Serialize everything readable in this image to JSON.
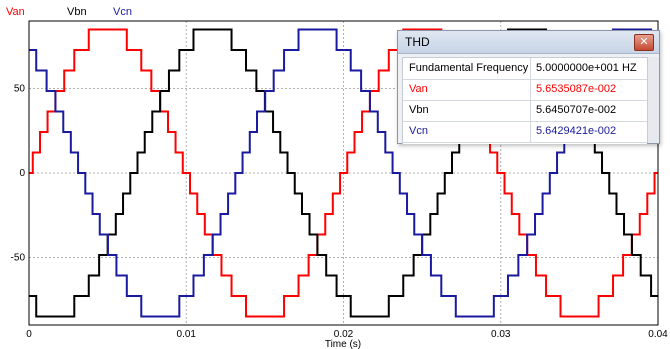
{
  "chart_data": {
    "type": "line",
    "title": "",
    "xlabel": "Time (s)",
    "ylabel": "",
    "xlim": [
      0,
      0.04
    ],
    "ylim": [
      -90,
      90
    ],
    "x_ticks": [
      0,
      0.01,
      0.02,
      0.03,
      0.04
    ],
    "x_tick_labels": [
      "0",
      "0.01",
      "0.02",
      "0.03",
      "0.04"
    ],
    "y_ticks": [
      -50,
      0,
      50
    ],
    "y_tick_labels": [
      "-50",
      "0",
      "50"
    ],
    "grid": true,
    "frequency_hz": 50,
    "amplitude": 85,
    "levels": 7,
    "series": [
      {
        "name": "Van",
        "color": "#ff0000",
        "phase_deg": 0
      },
      {
        "name": "Vbn",
        "color": "#000000",
        "phase_deg": -120
      },
      {
        "name": "Vcn",
        "color": "#1a1a9e",
        "phase_deg": 120
      }
    ]
  },
  "thd_window": {
    "title": "THD",
    "rows": [
      {
        "label": "Fundamental Frequency",
        "value": "5.0000000e+001 HZ",
        "color": "#000000"
      },
      {
        "label": "Van",
        "value": "5.6535087e-002",
        "color": "#ff0000"
      },
      {
        "label": "Vbn",
        "value": "5.6450707e-002",
        "color": "#000000"
      },
      {
        "label": "Vcn",
        "value": "5.6429421e-002",
        "color": "#1a1a9e"
      }
    ]
  }
}
